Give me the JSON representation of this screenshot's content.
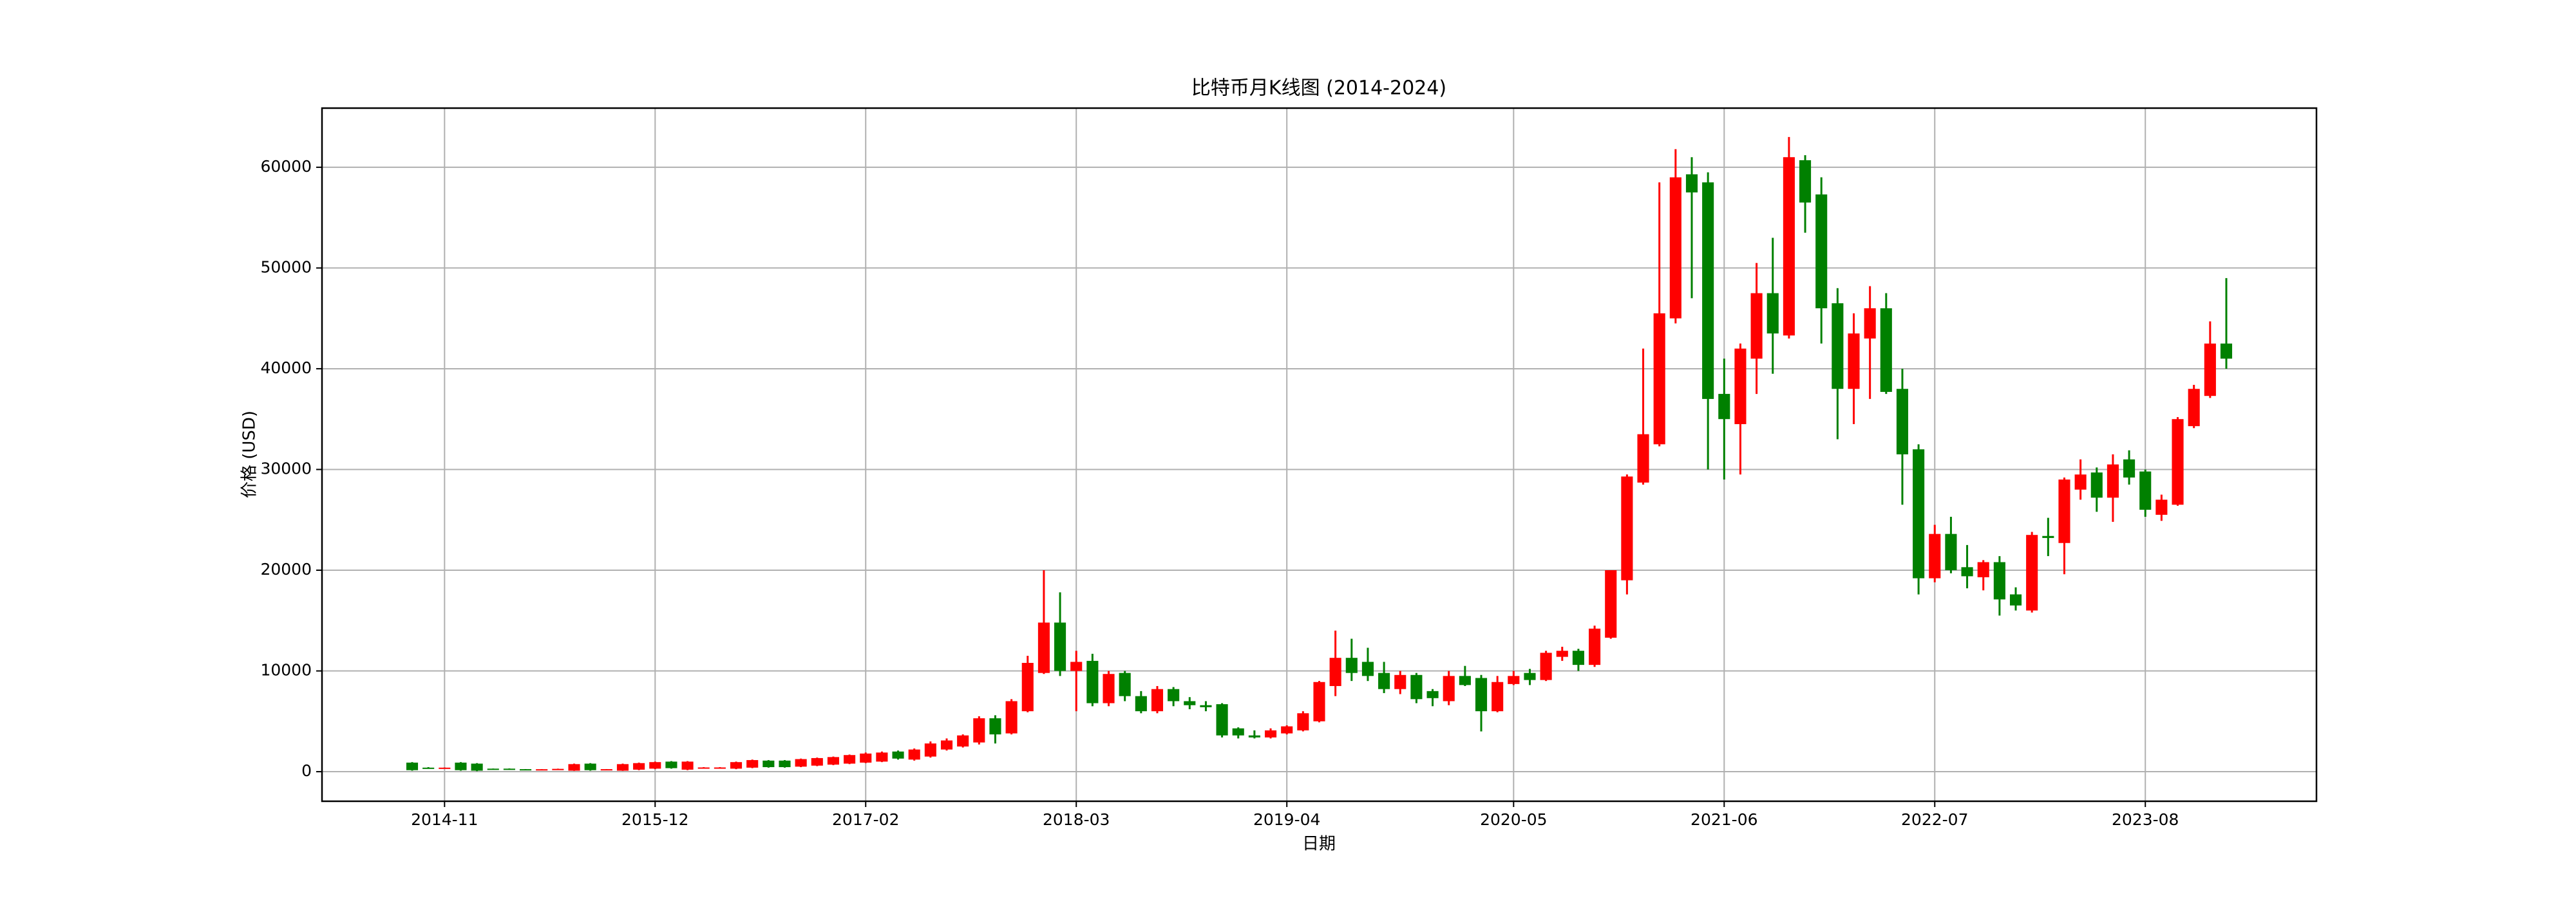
{
  "chart_data": {
    "type": "candlestick",
    "title": "比特币月K线图 (2014-2024)",
    "x_label": "日期",
    "y_label": "价格 (USD)",
    "categories": [
      null,
      null,
      "2014-11",
      null,
      null,
      null,
      null,
      null,
      null,
      null,
      null,
      null,
      null,
      null,
      null,
      "2015-12",
      null,
      null,
      null,
      null,
      null,
      null,
      null,
      null,
      null,
      null,
      null,
      null,
      "2017-02",
      null,
      null,
      null,
      null,
      null,
      null,
      null,
      null,
      null,
      null,
      null,
      null,
      "2018-03",
      null,
      null,
      null,
      null,
      null,
      null,
      null,
      null,
      null,
      null,
      null,
      null,
      "2019-04",
      null,
      null,
      null,
      null,
      null,
      null,
      null,
      null,
      null,
      null,
      null,
      null,
      null,
      "2020-05",
      null,
      null,
      null,
      null,
      null,
      null,
      null,
      null,
      null,
      null,
      null,
      null,
      "2021-06",
      null,
      null,
      null,
      null,
      null,
      null,
      null,
      null,
      null,
      null,
      null,
      null,
      "2022-07",
      null,
      null,
      null,
      null,
      null,
      null,
      null,
      null,
      null,
      null,
      null,
      null,
      "2023-08",
      null,
      null,
      null,
      null,
      null
    ],
    "open": [
      900,
      400,
      350,
      900,
      800,
      300,
      300,
      250,
      240,
      230,
      100,
      800,
      250,
      100,
      200,
      300,
      1000,
      200,
      400,
      400,
      300,
      400,
      1100,
      1100,
      500,
      600,
      700,
      800,
      900,
      1000,
      2000,
      1200,
      1500,
      2200,
      2500,
      2900,
      5300,
      3800,
      6000,
      9800,
      14800,
      10000,
      11000,
      6800,
      9800,
      7500,
      6000,
      8200,
      7000,
      6600,
      6700,
      4300,
      3600,
      3400,
      3800,
      4100,
      5000,
      8500,
      11300,
      10900,
      9800,
      8200,
      9600,
      8000,
      7000,
      9500,
      9300,
      6000,
      8700,
      9800,
      9100,
      11400,
      12000,
      10600,
      13300,
      19000,
      28700,
      32500,
      45000,
      59300,
      58500,
      37500,
      34500,
      41000,
      47500,
      43300,
      60700,
      57300,
      46500,
      38000,
      43000,
      46000,
      38000,
      32000,
      19200,
      23600,
      20300,
      19300,
      20800,
      17600,
      16000,
      23400,
      22700,
      28000,
      29700,
      27200,
      31000,
      29800,
      25500,
      26500,
      34300,
      37300,
      42500
    ],
    "high": [
      950,
      450,
      420,
      950,
      850,
      310,
      320,
      260,
      250,
      300,
      800,
      850,
      260,
      800,
      900,
      1000,
      1050,
      1050,
      450,
      450,
      1000,
      1200,
      1150,
      1150,
      1300,
      1400,
      1500,
      1700,
      1900,
      2000,
      2100,
      2300,
      3000,
      3300,
      3700,
      5500,
      5600,
      7200,
      11500,
      20000,
      17800,
      12000,
      11700,
      10000,
      10000,
      8000,
      8500,
      8400,
      7400,
      7000,
      6800,
      4400,
      4100,
      4300,
      4600,
      6000,
      9000,
      14000,
      13200,
      12300,
      10900,
      10000,
      9800,
      8200,
      10000,
      10500,
      9600,
      9500,
      10000,
      10200,
      12000,
      12400,
      12200,
      14500,
      20000,
      29500,
      42000,
      58500,
      61800,
      61000,
      59500,
      41000,
      42500,
      50500,
      53000,
      63000,
      61200,
      59000,
      48000,
      45500,
      48200,
      47500,
      40000,
      32500,
      24500,
      25300,
      22500,
      21000,
      21400,
      18300,
      23800,
      25200,
      29200,
      31000,
      30200,
      31500,
      31900,
      30000,
      27500,
      35200,
      38400,
      44700,
      49000
    ],
    "low": [
      100,
      300,
      320,
      100,
      50,
      280,
      250,
      230,
      230,
      220,
      80,
      100,
      240,
      80,
      150,
      250,
      300,
      150,
      380,
      380,
      250,
      350,
      400,
      400,
      450,
      550,
      650,
      750,
      850,
      950,
      1200,
      1100,
      1400,
      2100,
      2400,
      2700,
      2800,
      3700,
      5900,
      9700,
      9500,
      6000,
      6500,
      6500,
      7000,
      5800,
      5800,
      6500,
      6200,
      6000,
      3400,
      3300,
      3300,
      3300,
      3700,
      4000,
      4900,
      7500,
      9000,
      9000,
      7800,
      7700,
      6800,
      6500,
      6600,
      8500,
      4000,
      5900,
      8600,
      8600,
      9000,
      11000,
      10000,
      10400,
      13200,
      17600,
      28500,
      32300,
      44500,
      47000,
      30000,
      29000,
      29500,
      37500,
      39500,
      43000,
      53500,
      42500,
      33000,
      34500,
      37000,
      37500,
      26500,
      17600,
      18800,
      19700,
      18200,
      18000,
      15500,
      16000,
      15800,
      21400,
      19600,
      27000,
      25800,
      24800,
      28500,
      25300,
      24900,
      26400,
      34100,
      37100,
      40000
    ],
    "close": [
      150,
      380,
      400,
      150,
      100,
      290,
      280,
      240,
      245,
      280,
      750,
      150,
      250,
      750,
      850,
      950,
      350,
      1000,
      420,
      420,
      950,
      1150,
      450,
      450,
      1250,
      1350,
      1450,
      1650,
      1800,
      1900,
      1300,
      2200,
      2800,
      3100,
      3600,
      5300,
      3700,
      7000,
      10800,
      14800,
      10000,
      10900,
      6800,
      9700,
      7500,
      6000,
      8200,
      7000,
      6600,
      6400,
      3600,
      3600,
      3400,
      4100,
      4500,
      5800,
      8900,
      11300,
      9800,
      9500,
      8200,
      9600,
      7200,
      7300,
      9500,
      8600,
      6000,
      8900,
      9500,
      9100,
      11800,
      12000,
      10600,
      14200,
      20000,
      29300,
      33500,
      45500,
      59000,
      57500,
      37000,
      35000,
      42000,
      47500,
      43500,
      61000,
      56500,
      46000,
      38000,
      43500,
      46000,
      37700,
      31500,
      19200,
      23600,
      20000,
      19400,
      20800,
      17100,
      16500,
      23500,
      23200,
      29000,
      29500,
      27200,
      30500,
      29200,
      26000,
      27000,
      35000,
      38000,
      42500,
      41000
    ],
    "up_color": "#ff0000",
    "down_color": "#008000",
    "ylim": [
      -2935,
      65870
    ],
    "yticks": [
      0,
      10000,
      20000,
      30000,
      40000,
      50000,
      60000
    ],
    "grid": true
  }
}
